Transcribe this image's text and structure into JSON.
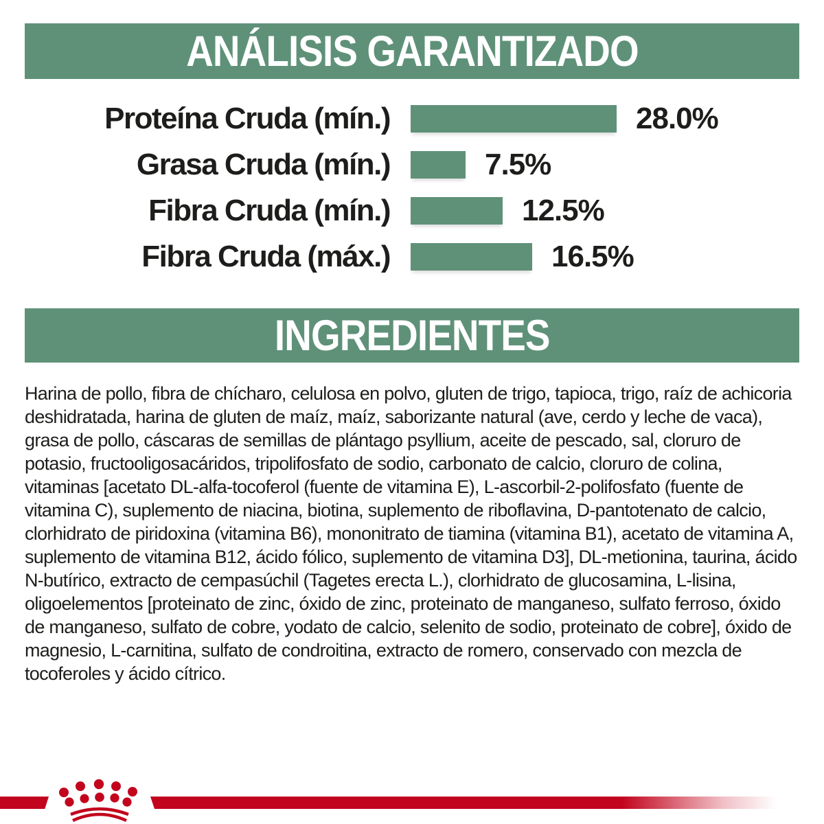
{
  "colors": {
    "green": "#5f9179",
    "red": "#c2051d",
    "heading_text": "#ffffff",
    "body_text": "#1d1d1b"
  },
  "analysis_section": {
    "title": "ANÁLISIS GARANTIZADO"
  },
  "chart_data": {
    "type": "bar",
    "orientation": "horizontal",
    "title": "ANÁLISIS GARANTIZADO",
    "categories": [
      "Proteína Cruda (mín.)",
      "Grasa Cruda (mín.)",
      "Fibra Cruda (mín.)",
      "Fibra Cruda (máx.)"
    ],
    "values": [
      28.0,
      7.5,
      12.5,
      16.5
    ],
    "value_labels": [
      "28.0%",
      "7.5%",
      "12.5%",
      "16.5%"
    ],
    "unit": "%",
    "xlim": [
      0,
      28
    ],
    "bar_color": "#5f9179",
    "grid": false,
    "value_label_position": "right-of-bar"
  },
  "ingredients_section": {
    "title": "INGREDIENTES",
    "text": "Harina de pollo, fibra de chícharo, celulosa en polvo, gluten de trigo, tapioca, trigo, raíz de achicoria deshidratada, harina de gluten de maíz, maíz, saborizante natural (ave, cerdo y leche de vaca), grasa de pollo, cáscaras de semillas de plántago psyllium, aceite de pescado, sal, cloruro de potasio, fructooligosacáridos, tripolifosfato de sodio, carbonato de calcio, cloruro de colina, vitaminas [acetato DL-alfa-tocoferol (fuente de vitamina E), L-ascorbil-2-polifosfato (fuente de vitamina C), suplemento de niacina, biotina, suplemento de riboflavina, D-pantotenato de calcio, clorhidrato de piridoxina (vitamina B6), mononitrato de tiamina (vitamina B1), acetato de vitamina A, suplemento de vitamina B12, ácido fólico, suplemento de vitamina D3], DL-metionina, taurina, ácido N-butírico, extracto de cempasúchil (Tagetes erecta L.), clorhidrato de glucosamina, L-lisina, oligoelementos [proteinato de zinc, óxido de zinc, proteinato de manganeso, sulfato ferroso, óxido de manganeso, sulfato de cobre, yodato de calcio, selenito de sodio, proteinato de cobre], óxido de magnesio, L-carnitina, sulfato de condroitina, extracto de romero, conservado con mezcla de tocoferoles y ácido cítrico."
  },
  "footer": {
    "logo": "royal-canin-crown-icon"
  }
}
